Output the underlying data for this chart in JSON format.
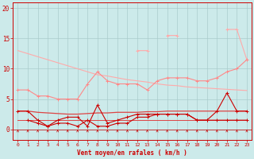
{
  "xlabel": "Vent moyen/en rafales ( km/h )",
  "x": [
    0,
    1,
    2,
    3,
    4,
    5,
    6,
    7,
    8,
    9,
    10,
    11,
    12,
    13,
    14,
    15,
    16,
    17,
    18,
    19,
    20,
    21,
    22,
    23
  ],
  "background_color": "#cceaea",
  "grid_color": "#aacccc",
  "red_dark": "#cc0000",
  "red_mid": "#dd4444",
  "salmon": "#ff8888",
  "salmon_light": "#ffaaaa",
  "series": {
    "light_declining": [
      13,
      12.5,
      12.0,
      11.5,
      11.0,
      10.5,
      10.0,
      9.5,
      9.0,
      8.8,
      8.5,
      8.2,
      8.0,
      7.8,
      7.5,
      7.3,
      7.2,
      7.0,
      6.9,
      6.8,
      6.7,
      6.6,
      6.5,
      6.4
    ],
    "salmon_rising": [
      null,
      null,
      null,
      null,
      null,
      null,
      null,
      null,
      null,
      null,
      null,
      null,
      13,
      13,
      null,
      15.5,
      15.5,
      null,
      null,
      null,
      null,
      16.5,
      16.5,
      11.5
    ],
    "salmon_mid": [
      6.5,
      6.5,
      5.5,
      5.5,
      5.0,
      5.0,
      5.0,
      7.5,
      9.5,
      8.0,
      7.5,
      7.5,
      7.5,
      6.5,
      8.0,
      8.5,
      8.5,
      8.5,
      8.0,
      8.0,
      8.5,
      9.5,
      10.0,
      11.5
    ],
    "red_medium_line": [
      3.0,
      3.0,
      2.8,
      2.7,
      2.6,
      2.5,
      2.5,
      2.6,
      2.7,
      2.7,
      2.8,
      2.8,
      2.8,
      2.9,
      2.9,
      3.0,
      3.0,
      3.0,
      3.0,
      3.0,
      3.0,
      3.0,
      3.0,
      3.0
    ],
    "red_spiky": [
      3,
      3,
      1.5,
      0.5,
      1.5,
      2.0,
      2.0,
      0.5,
      4.0,
      1.0,
      1.5,
      2.0,
      2.5,
      2.5,
      2.5,
      2.5,
      2.5,
      2.5,
      1.5,
      1.5,
      3.0,
      6.0,
      3.0,
      3.0
    ],
    "dark_red_wiggly": [
      null,
      1.5,
      1.0,
      0.5,
      1.0,
      1.0,
      0.5,
      1.5,
      0.5,
      0.5,
      1.0,
      1.0,
      2.0,
      2.0,
      2.5,
      2.5,
      2.5,
      2.5,
      1.5,
      1.5,
      1.5,
      1.5,
      1.5,
      1.5
    ],
    "flat_low": [
      1.5,
      1.5,
      1.5,
      1.5,
      1.5,
      1.5,
      1.5,
      1.5,
      1.5,
      1.5,
      1.5,
      1.5,
      1.5,
      1.5,
      1.5,
      1.5,
      1.5,
      1.5,
      1.5,
      1.5,
      1.5,
      1.5,
      1.5,
      1.5
    ]
  }
}
